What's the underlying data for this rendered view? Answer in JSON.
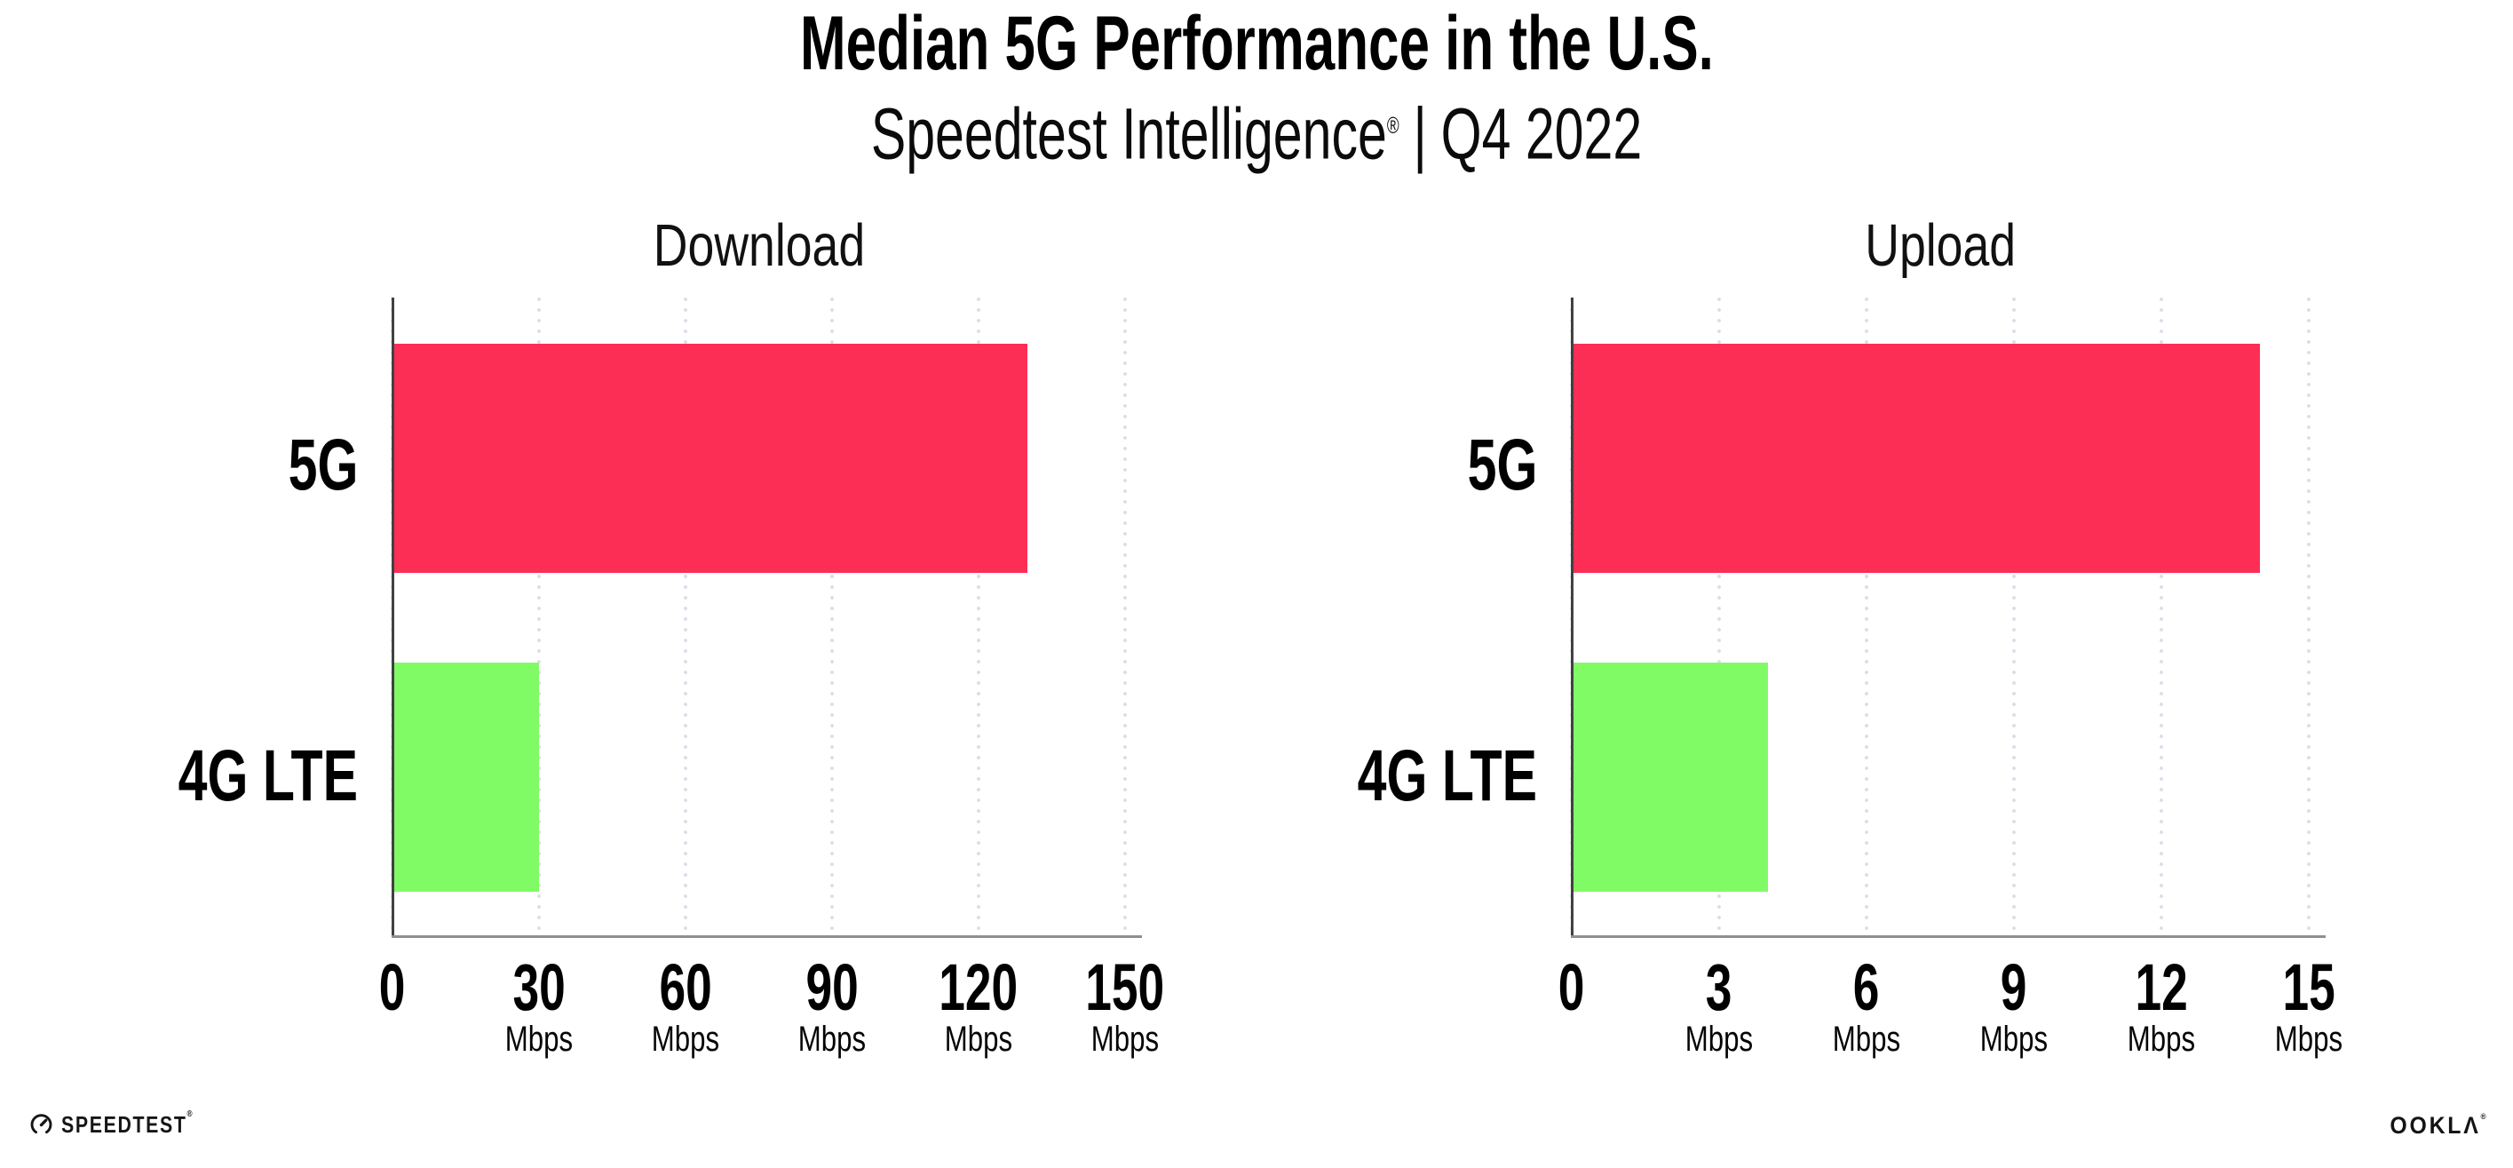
{
  "header": {
    "title": "Median 5G Performance in the U.S.",
    "subtitle_brand": "Speedtest Intelligence",
    "subtitle_reg": "®",
    "subtitle_separator": "|",
    "subtitle_period": "Q4 2022"
  },
  "chart_data": [
    {
      "type": "bar",
      "orientation": "horizontal",
      "title": "Download",
      "categories": [
        "5G",
        "4G LTE"
      ],
      "values": [
        130,
        30
      ],
      "unit": "Mbps",
      "xlim": [
        0,
        150
      ],
      "xticks": [
        0,
        30,
        60,
        90,
        120,
        150
      ],
      "tick_unit_label": "Mbps",
      "bar_colors": [
        "#fd2e55",
        "#80fb65"
      ],
      "grid": "dotted-vertical-at-ticks",
      "legend": "none"
    },
    {
      "type": "bar",
      "orientation": "horizontal",
      "title": "Upload",
      "categories": [
        "5G",
        "4G LTE"
      ],
      "values": [
        14,
        4
      ],
      "unit": "Mbps",
      "xlim": [
        0,
        15
      ],
      "xticks": [
        0,
        3,
        6,
        9,
        12,
        15
      ],
      "tick_unit_label": "Mbps",
      "bar_colors": [
        "#fd2e55",
        "#80fb65"
      ],
      "grid": "dotted-vertical-at-ticks",
      "legend": "none"
    }
  ],
  "colors": {
    "bar_5g": "#fd2e55",
    "bar_4g_lte": "#80fb65",
    "gridline_dots": "#dcdce8",
    "y_axis_line": "#414141",
    "x_axis_line": "#8f8f8f",
    "background": "#ffffff",
    "text": "#000000"
  },
  "footer": {
    "speedtest_label": "SPEEDTEST",
    "speedtest_mark": "®",
    "ookla_label": "OOKLΛ",
    "ookla_mark": "®"
  }
}
